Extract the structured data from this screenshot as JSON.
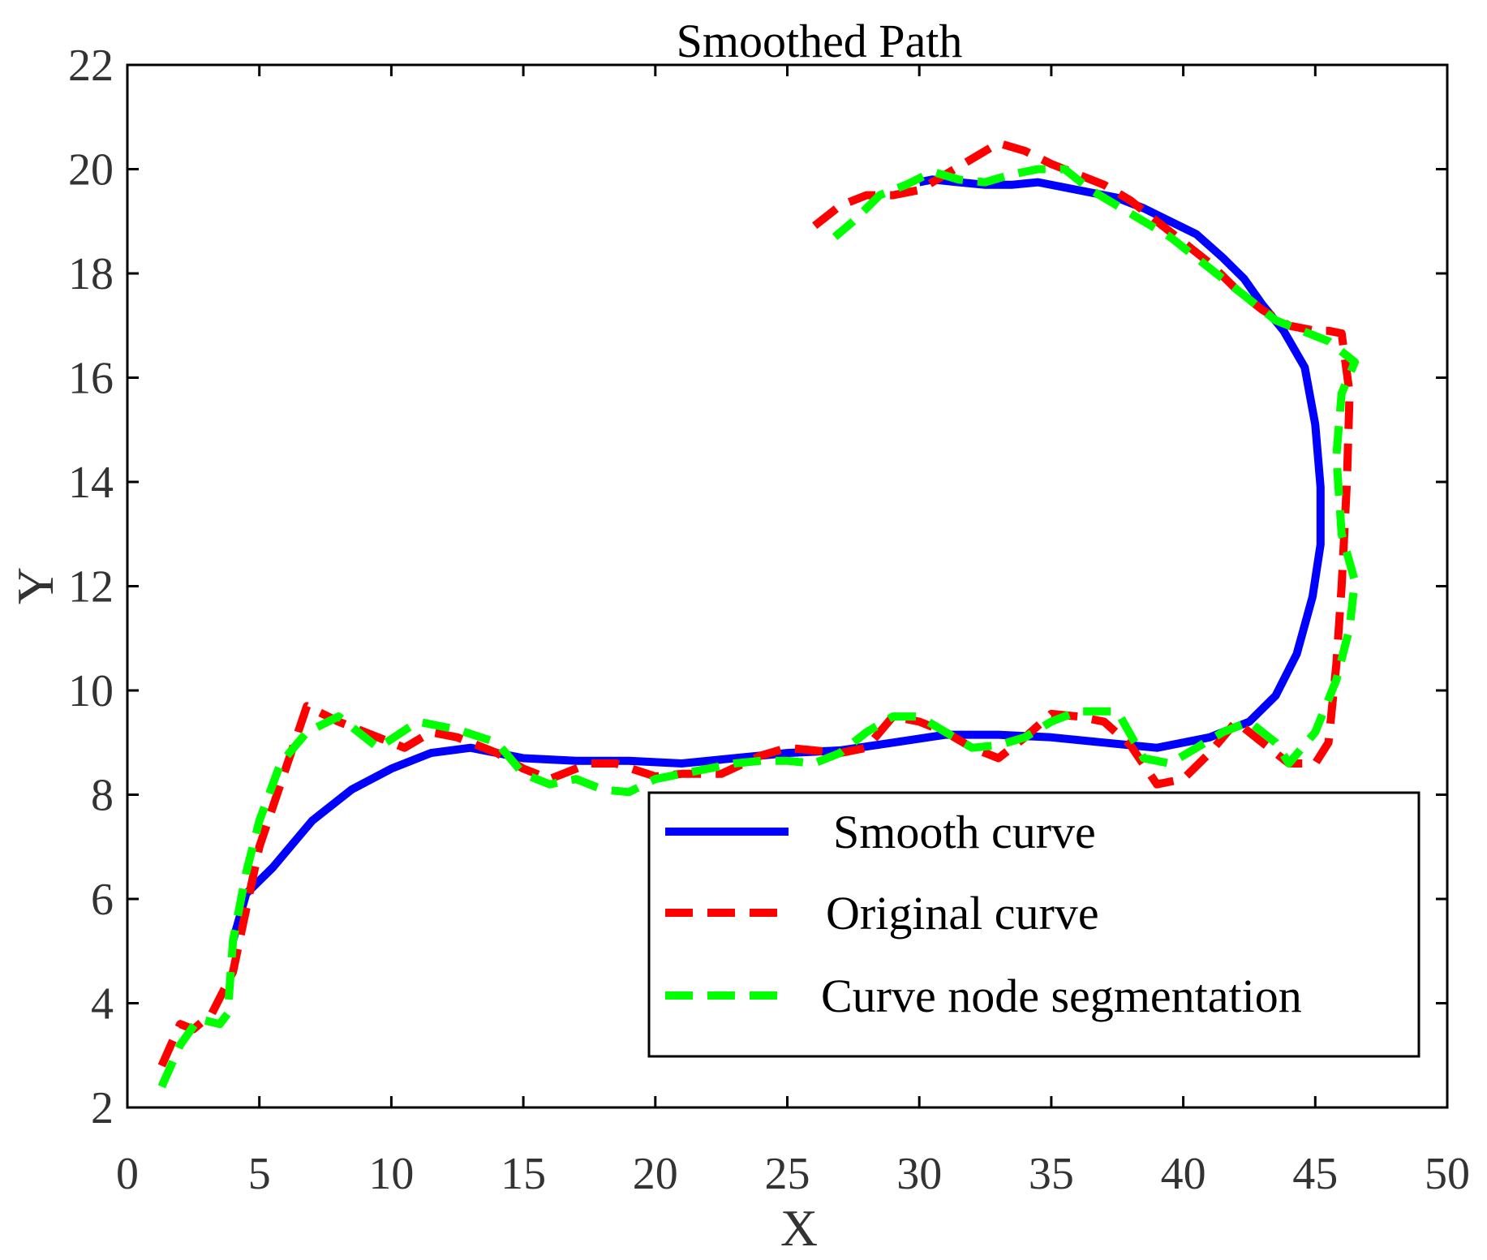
{
  "chart_data": {
    "type": "line",
    "title": "Smoothed Path",
    "xlabel": "X",
    "ylabel": "Y",
    "xlim": [
      0,
      50
    ],
    "ylim": [
      2,
      22
    ],
    "xticks": [
      0,
      5,
      10,
      15,
      20,
      25,
      30,
      35,
      40,
      45,
      50
    ],
    "yticks": [
      2,
      4,
      6,
      8,
      10,
      12,
      14,
      16,
      18,
      20,
      22
    ],
    "grid": false,
    "legend_position": "bottom-right",
    "series": [
      {
        "name": "Smooth curve",
        "color": "#0000ff",
        "style": "solid",
        "x": [
          4,
          4.5,
          5.5,
          7,
          8.5,
          10,
          11.5,
          13,
          15,
          17,
          19,
          21,
          23,
          25,
          27,
          29,
          31,
          33,
          35,
          37,
          39,
          41,
          42.5,
          43.5,
          44.3,
          44.9,
          45.2,
          45.2,
          45.0,
          44.6,
          43.8,
          43.0,
          42.3,
          41.5,
          40.5,
          39.5,
          38.5,
          37.5,
          36.5,
          35.5,
          34.5,
          33.5,
          32.5,
          31.5,
          30.5,
          30.0
        ],
        "y": [
          5.2,
          6.1,
          6.6,
          7.5,
          8.1,
          8.5,
          8.8,
          8.9,
          8.7,
          8.65,
          8.65,
          8.6,
          8.7,
          8.8,
          8.85,
          9.0,
          9.15,
          9.15,
          9.1,
          9.0,
          8.9,
          9.1,
          9.4,
          9.9,
          10.7,
          11.8,
          12.8,
          13.9,
          15.1,
          16.2,
          16.9,
          17.4,
          17.9,
          18.3,
          18.75,
          19.0,
          19.25,
          19.45,
          19.55,
          19.65,
          19.75,
          19.7,
          19.7,
          19.75,
          19.8,
          19.75
        ]
      },
      {
        "name": "Original curve",
        "color": "#ff0000",
        "style": "dashed",
        "x": [
          1.3,
          2.0,
          2.5,
          3.2,
          4.0,
          4.5,
          5.0,
          6.0,
          6.8,
          8.0,
          9.5,
          10.5,
          11.5,
          12.5,
          14.0,
          15.0,
          16.0,
          17.5,
          18.5,
          20.0,
          21.0,
          22.5,
          24.0,
          25.0,
          26.0,
          27.0,
          28.0,
          29.0,
          30.0,
          31.0,
          32.0,
          33.0,
          34.0,
          35.0,
          36.0,
          37.0,
          38.0,
          39.0,
          40.0,
          41.0,
          42.0,
          43.0,
          44.0,
          45.0,
          45.5,
          45.8,
          46.0,
          46.2,
          46.3,
          46.0,
          45.5,
          45.0,
          44.0,
          43.0,
          42.0,
          41.0,
          40.0,
          39.0,
          38.0,
          37.0,
          36.0,
          35.0,
          34.0,
          33.0,
          32.0,
          31.0,
          30.0,
          29.0,
          28.0,
          27.0,
          26.0
        ],
        "y": [
          2.8,
          3.6,
          3.5,
          3.8,
          4.6,
          5.8,
          7.0,
          8.5,
          9.7,
          9.4,
          9.1,
          8.9,
          9.2,
          9.1,
          8.8,
          8.5,
          8.3,
          8.6,
          8.6,
          8.35,
          8.4,
          8.4,
          8.75,
          8.9,
          8.85,
          8.8,
          8.9,
          9.5,
          9.4,
          9.2,
          8.9,
          8.7,
          9.1,
          9.55,
          9.5,
          9.4,
          8.95,
          8.2,
          8.3,
          8.8,
          9.4,
          9.0,
          8.6,
          8.6,
          9.0,
          10.5,
          12.0,
          14.0,
          15.7,
          16.85,
          16.9,
          16.9,
          17.0,
          17.3,
          17.7,
          18.2,
          18.6,
          19.0,
          19.4,
          19.7,
          19.9,
          20.1,
          20.35,
          20.5,
          20.2,
          19.9,
          19.6,
          19.5,
          19.5,
          19.3,
          18.9
        ]
      },
      {
        "name": "Curve node segmentation",
        "color": "#00ff00",
        "style": "dashed",
        "x": [
          1.3,
          2.0,
          2.7,
          3.5,
          3.8,
          4.0,
          4.5,
          5.0,
          5.8,
          6.8,
          8.0,
          9.5,
          11.0,
          12.5,
          14.0,
          15.0,
          16.0,
          17.0,
          18.0,
          19.0,
          20.0,
          21.0,
          22.0,
          23.0,
          24.0,
          25.0,
          26.0,
          27.0,
          28.0,
          29.0,
          30.0,
          31.0,
          32.0,
          33.0,
          34.0,
          35.0,
          36.0,
          37.0,
          37.5,
          38.5,
          39.5,
          40.5,
          41.5,
          42.5,
          43.5,
          44.0,
          45.0,
          45.8,
          46.3,
          46.5,
          46.0,
          45.8,
          46.0,
          46.5,
          45.5,
          44.5,
          43.5,
          42.5,
          41.5,
          40.5,
          39.5,
          38.5,
          37.5,
          36.5,
          35.5,
          34.5,
          33.5,
          32.5,
          31.5,
          30.5,
          29.5,
          28.5,
          27.5,
          26.8
        ],
        "y": [
          2.4,
          3.2,
          3.7,
          3.6,
          3.8,
          5.2,
          6.5,
          7.5,
          8.6,
          9.2,
          9.5,
          8.9,
          9.4,
          9.25,
          9.0,
          8.4,
          8.2,
          8.3,
          8.1,
          8.05,
          8.3,
          8.4,
          8.5,
          8.6,
          8.65,
          8.65,
          8.6,
          8.8,
          9.2,
          9.5,
          9.5,
          9.2,
          8.9,
          8.95,
          9.1,
          9.4,
          9.6,
          9.6,
          9.6,
          8.7,
          8.6,
          8.9,
          9.2,
          9.4,
          9.0,
          8.6,
          9.2,
          10.2,
          11.2,
          12.1,
          13.0,
          14.5,
          15.7,
          16.3,
          16.7,
          16.9,
          17.1,
          17.5,
          17.9,
          18.3,
          18.7,
          19.0,
          19.3,
          19.6,
          20.0,
          20.0,
          19.9,
          19.75,
          19.8,
          19.95,
          19.7,
          19.5,
          19.0,
          18.7
        ]
      }
    ]
  }
}
